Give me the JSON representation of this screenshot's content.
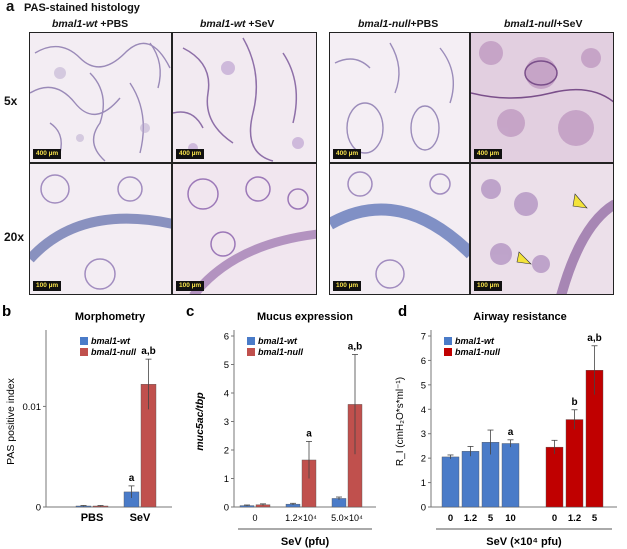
{
  "panel_a": {
    "letter": "a",
    "title": "PAS-stained histology",
    "columns": [
      {
        "italic": "bmal1-wt",
        "rest": " +PBS"
      },
      {
        "italic": "bmal1-wt",
        "rest": " +SeV"
      },
      {
        "italic": "bmal1-null",
        "rest": "+PBS"
      },
      {
        "italic": "bmal1-null",
        "rest": "+SeV"
      }
    ],
    "rows": [
      "5x",
      "20x"
    ],
    "scalebars": [
      "400 µm",
      "100 µm"
    ]
  },
  "chart_data": [
    {
      "letter": "b",
      "type": "bar",
      "title": "Morphometry",
      "ylabel": "PAS positive index",
      "categories": [
        "PBS",
        "SeV"
      ],
      "ylim": [
        0,
        0.017
      ],
      "yticks": [
        "0",
        "0.01"
      ],
      "series": [
        {
          "name": "bmal1-wt",
          "color": "#4a7bc8",
          "values": [
            0.0001,
            0.0015
          ],
          "errors": [
            5e-05,
            0.0006
          ]
        },
        {
          "name": "bmal1-null",
          "color": "#c0504d",
          "values": [
            0.0001,
            0.0122
          ],
          "errors": [
            5e-05,
            0.0025
          ]
        }
      ],
      "annotations": [
        {
          "series": 0,
          "index": 1,
          "text": "a"
        },
        {
          "series": 1,
          "index": 1,
          "text": "a,b"
        }
      ]
    },
    {
      "letter": "c",
      "type": "bar",
      "title": "Mucus expression",
      "ylabel": "muc5ac/tbp",
      "xlabel": "SeV (pfu)",
      "categories": [
        "0",
        "1.2×10⁴",
        "5.0×10⁴"
      ],
      "ylim": [
        0,
        6
      ],
      "yticks": [
        "0",
        "1",
        "2",
        "3",
        "4",
        "5",
        "6"
      ],
      "series": [
        {
          "name": "bmal1-wt",
          "color": "#4a7bc8",
          "values": [
            0.05,
            0.1,
            0.3
          ],
          "errors": [
            0.02,
            0.03,
            0.05
          ]
        },
        {
          "name": "bmal1-null",
          "color": "#c0504d",
          "values": [
            0.08,
            1.65,
            3.6
          ],
          "errors": [
            0.03,
            0.65,
            1.75
          ]
        }
      ],
      "annotations": [
        {
          "series": 1,
          "index": 1,
          "text": "a"
        },
        {
          "series": 1,
          "index": 2,
          "text": "a,b"
        }
      ]
    },
    {
      "letter": "d",
      "type": "bar",
      "title": "Airway resistance",
      "ylabel": "R_I (cmH₂O*s*ml⁻¹)",
      "xlabel": "SeV (×10⁴ pfu)",
      "ylim": [
        0,
        7
      ],
      "yticks": [
        "0",
        "1",
        "2",
        "3",
        "4",
        "5",
        "6",
        "7"
      ],
      "series": [
        {
          "name": "bmal1-wt",
          "color": "#4a7bc8",
          "categories": [
            "0",
            "1.2",
            "5",
            "10"
          ],
          "values": [
            2.05,
            2.28,
            2.65,
            2.6
          ],
          "errors": [
            0.08,
            0.2,
            0.5,
            0.15
          ]
        },
        {
          "name": "bmal1-null",
          "color": "#c00000",
          "categories": [
            "0",
            "1.2",
            "5"
          ],
          "values": [
            2.45,
            3.58,
            5.6
          ],
          "errors": [
            0.28,
            0.4,
            1.0
          ]
        }
      ],
      "annotations": [
        {
          "series": 0,
          "index": 3,
          "text": "a"
        },
        {
          "series": 1,
          "index": 1,
          "text": "b"
        },
        {
          "series": 1,
          "index": 2,
          "text": "a,b"
        }
      ]
    }
  ]
}
